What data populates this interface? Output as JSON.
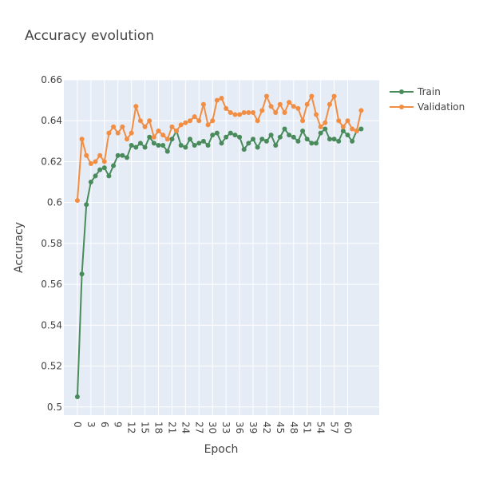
{
  "chart_data": {
    "type": "line",
    "title": "Accuracy evolution",
    "xlabel": "Epoch",
    "ylabel": "Accuracy",
    "xlim": [
      -3,
      67
    ],
    "ylim": [
      0.496,
      0.66
    ],
    "xticks": [
      "0",
      "3",
      "6",
      "9",
      "12",
      "15",
      "18",
      "21",
      "24",
      "27",
      "30",
      "33",
      "36",
      "39",
      "42",
      "45",
      "48",
      "51",
      "54",
      "57",
      "60"
    ],
    "yticks": [
      "0.5",
      "0.52",
      "0.54",
      "0.56",
      "0.58",
      "0.6",
      "0.62",
      "0.64",
      "0.66"
    ],
    "grid": true,
    "legend": "top-right",
    "x": [
      0,
      1,
      2,
      3,
      4,
      5,
      6,
      7,
      8,
      9,
      10,
      11,
      12,
      13,
      14,
      15,
      16,
      17,
      18,
      19,
      20,
      21,
      22,
      23,
      24,
      25,
      26,
      27,
      28,
      29,
      30,
      31,
      32,
      33,
      34,
      35,
      36,
      37,
      38,
      39,
      40,
      41,
      42,
      43,
      44,
      45,
      46,
      47,
      48,
      49,
      50,
      51,
      52,
      53,
      54,
      55,
      56,
      57,
      58,
      59,
      60,
      61,
      62,
      63
    ],
    "series": [
      {
        "name": "Train",
        "color": "#4a8b5c",
        "values": [
          0.505,
          0.565,
          0.599,
          0.61,
          0.613,
          0.616,
          0.617,
          0.613,
          0.618,
          0.623,
          0.623,
          0.622,
          0.628,
          0.627,
          0.629,
          0.627,
          0.632,
          0.629,
          0.628,
          0.628,
          0.625,
          0.631,
          0.635,
          0.628,
          0.627,
          0.631,
          0.628,
          0.629,
          0.63,
          0.628,
          0.633,
          0.634,
          0.629,
          0.632,
          0.634,
          0.633,
          0.632,
          0.626,
          0.629,
          0.631,
          0.627,
          0.631,
          0.63,
          0.633,
          0.628,
          0.632,
          0.636,
          0.633,
          0.632,
          0.63,
          0.635,
          0.631,
          0.629,
          0.629,
          0.634,
          0.636,
          0.631,
          0.631,
          0.63,
          0.635,
          0.633,
          0.63,
          0.635,
          0.636
        ]
      },
      {
        "name": "Validation",
        "color": "#f28e43",
        "values": [
          0.601,
          0.631,
          0.623,
          0.619,
          0.62,
          0.623,
          0.62,
          0.634,
          0.637,
          0.634,
          0.637,
          0.631,
          0.634,
          0.647,
          0.64,
          0.637,
          0.64,
          0.632,
          0.635,
          0.633,
          0.631,
          0.637,
          0.635,
          0.638,
          0.639,
          0.64,
          0.642,
          0.64,
          0.648,
          0.638,
          0.64,
          0.65,
          0.651,
          0.646,
          0.644,
          0.643,
          0.643,
          0.644,
          0.644,
          0.644,
          0.64,
          0.645,
          0.652,
          0.647,
          0.644,
          0.648,
          0.644,
          0.649,
          0.647,
          0.646,
          0.64,
          0.648,
          0.652,
          0.643,
          0.637,
          0.639,
          0.648,
          0.652,
          0.64,
          0.637,
          0.64,
          0.636,
          0.635,
          0.645
        ]
      }
    ]
  }
}
